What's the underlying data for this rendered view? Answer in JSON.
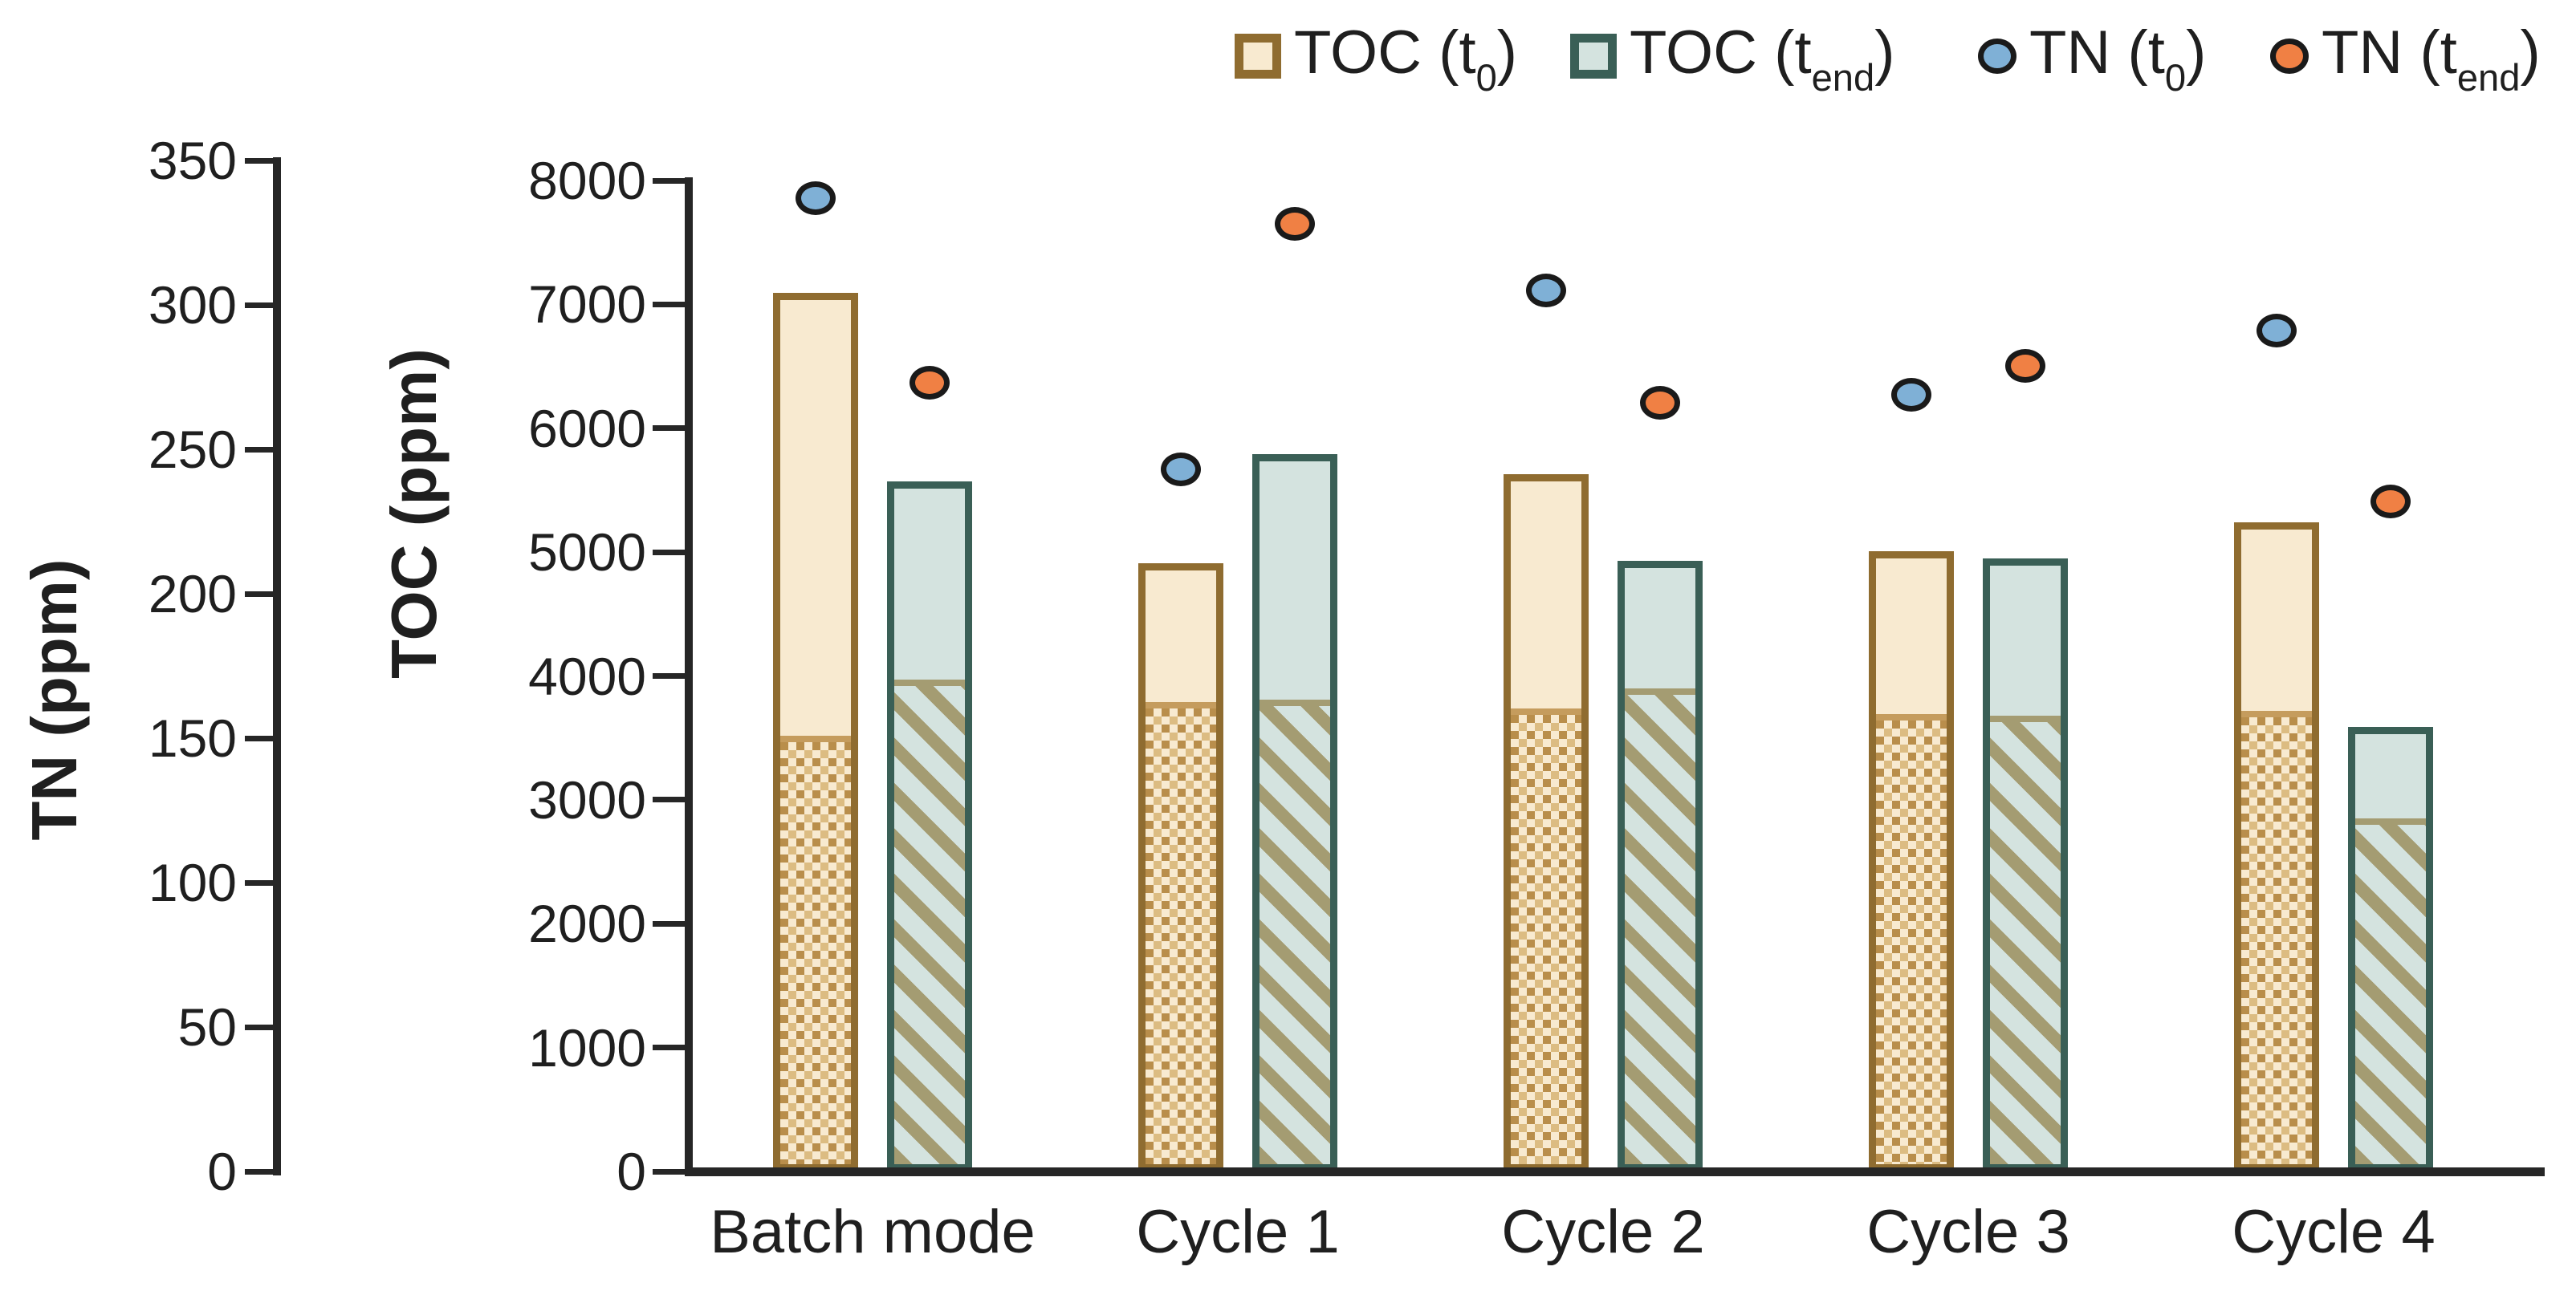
{
  "chart_data": {
    "type": "bar",
    "title": "",
    "categories": [
      "Batch mode",
      "Cycle 1",
      "Cycle 2",
      "Cycle 3",
      "Cycle 4"
    ],
    "series": [
      {
        "name": "TOC (t0)",
        "type": "bar",
        "axis": "TOC",
        "unit": "ppm",
        "values": [
          7090,
          4910,
          5630,
          5010,
          5240
        ],
        "patterned_lower_values": [
          3520,
          3790,
          3740,
          3690,
          3720
        ],
        "pattern": "diagonal-checker-dots"
      },
      {
        "name": "TOC (tend)",
        "type": "bar",
        "axis": "TOC",
        "unit": "ppm",
        "values": [
          5570,
          5790,
          4930,
          4950,
          3590
        ],
        "patterned_lower_values": [
          3970,
          3810,
          3900,
          3680,
          2850
        ],
        "pattern": "diagonal-stripes"
      },
      {
        "name": "TN (t0)",
        "type": "scatter",
        "axis": "TN",
        "unit": "ppm",
        "values": [
          337,
          243,
          305,
          269,
          291
        ]
      },
      {
        "name": "TN (tend)",
        "type": "scatter",
        "axis": "TN",
        "unit": "ppm",
        "values": [
          273,
          328,
          266,
          279,
          232
        ]
      }
    ],
    "left_axis": {
      "label": "TN (ppm)",
      "min": 0,
      "max": 350,
      "tick_step": 50,
      "ticks": [
        "0",
        "50",
        "100",
        "150",
        "200",
        "250",
        "300",
        "350"
      ]
    },
    "inner_axis": {
      "label": "TOC (ppm)",
      "min": 0,
      "max": 8000,
      "tick_step": 1000,
      "ticks": [
        "0",
        "1000",
        "2000",
        "3000",
        "4000",
        "5000",
        "6000",
        "7000",
        "8000"
      ]
    },
    "legend_position": "top-right",
    "grid": false
  },
  "legend": {
    "items": [
      {
        "key": "toc-t0",
        "swatch": "bar-tan",
        "prefix": "TOC (t",
        "sub": "0",
        "suffix": ")"
      },
      {
        "key": "toc-tend",
        "swatch": "bar-teal",
        "prefix": "TOC (t",
        "sub": "end",
        "suffix": ")"
      },
      {
        "key": "tn-t0",
        "swatch": "dot-blue",
        "prefix": "TN (t",
        "sub": "0",
        "suffix": ")"
      },
      {
        "key": "tn-tend",
        "swatch": "dot-orange",
        "prefix": "TN (t",
        "sub": "end",
        "suffix": ")"
      }
    ]
  },
  "colors": {
    "toc_t0_fill": "#f8ead0",
    "toc_t0_border": "#8f6c30",
    "toc_t0_pattern_dark": "#b98e4b",
    "toc_t0_pattern_light": "#dcbc82",
    "toc_t0_boundary": "#c59c5d",
    "toc_tend_fill": "#d4e3df",
    "toc_tend_border": "#3a5f56",
    "toc_tend_pattern": "#a49c72",
    "tn_t0_fill": "#7fb0d6",
    "tn_tend_fill": "#f08044",
    "marker_ring": "#1a1a1a",
    "axis": "#262626",
    "text": "#1f1f1f"
  }
}
